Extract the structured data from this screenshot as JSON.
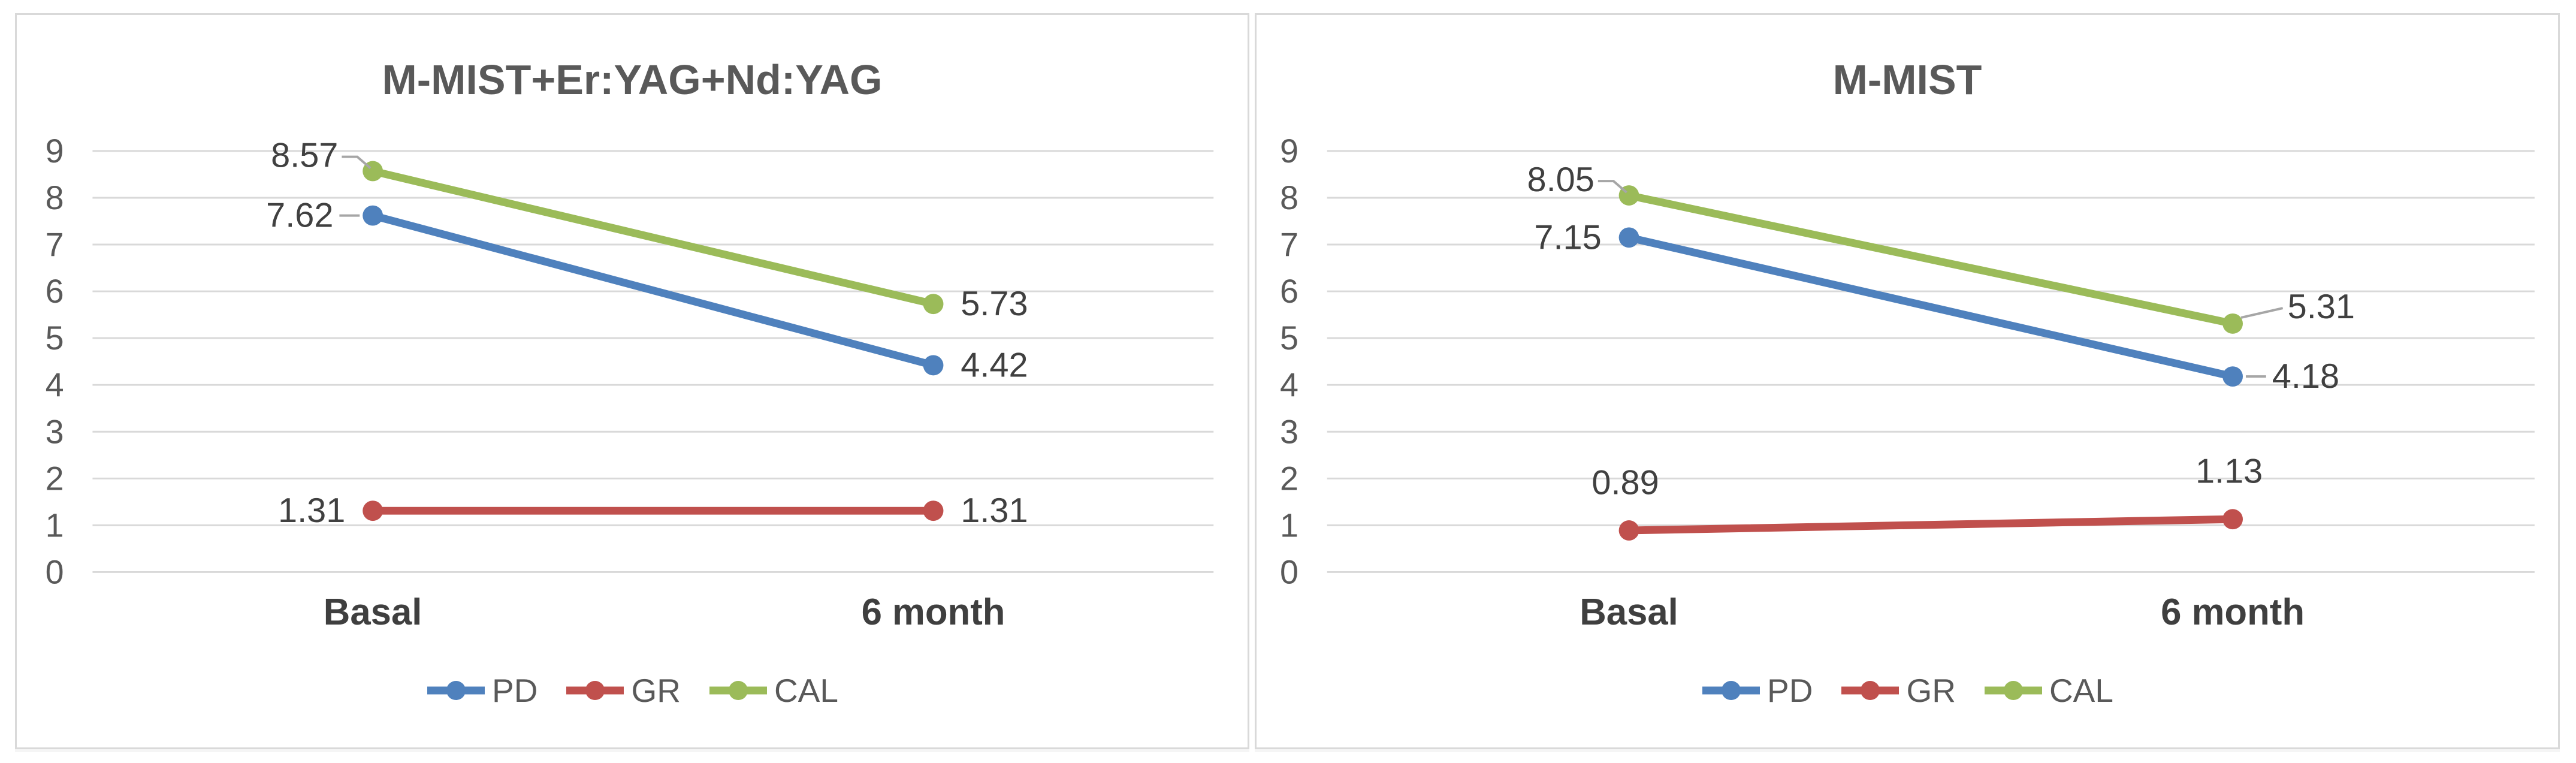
{
  "styles": {
    "gridline": "#D9D9D9",
    "panel_border": "#D9D9D9",
    "axis_text": "#595959",
    "label_text": "#404040",
    "leader": "#A6A6A6",
    "series_blue": "#4F81BD",
    "series_red": "#C0504D",
    "series_green": "#9BBB59"
  },
  "chart_data": [
    {
      "type": "line",
      "title": "M-MIST+Er:YAG+Nd:YAG",
      "categories": [
        "Basal",
        "6 month"
      ],
      "ylim": [
        0,
        9
      ],
      "yticks": [
        0,
        1,
        2,
        3,
        4,
        5,
        6,
        7,
        8,
        9
      ],
      "grid": true,
      "legend_position": "bottom",
      "series": [
        {
          "name": "PD",
          "color": "#4F81BD",
          "values": [
            7.62,
            4.42
          ],
          "labels": [
            {
              "text": "7.62",
              "pos": "left",
              "leader": "h"
            },
            {
              "text": "4.42",
              "pos": "right",
              "leader": "none"
            }
          ]
        },
        {
          "name": "GR",
          "color": "#C0504D",
          "values": [
            1.31,
            1.31
          ],
          "labels": [
            {
              "text": "1.31",
              "pos": "left",
              "leader": "none"
            },
            {
              "text": "1.31",
              "pos": "right",
              "leader": "none"
            }
          ]
        },
        {
          "name": "CAL",
          "color": "#9BBB59",
          "values": [
            8.57,
            5.73
          ],
          "labels": [
            {
              "text": "8.57",
              "pos": "left-elbow",
              "leader": "elbow"
            },
            {
              "text": "5.73",
              "pos": "right",
              "leader": "none"
            }
          ]
        }
      ]
    },
    {
      "type": "line",
      "title": "M-MIST",
      "categories": [
        "Basal",
        "6 month"
      ],
      "ylim": [
        0,
        9
      ],
      "yticks": [
        0,
        1,
        2,
        3,
        4,
        5,
        6,
        7,
        8,
        9
      ],
      "grid": true,
      "legend_position": "bottom",
      "series": [
        {
          "name": "PD",
          "color": "#4F81BD",
          "values": [
            7.15,
            4.18
          ],
          "labels": [
            {
              "text": "7.15",
              "pos": "left",
              "leader": "none"
            },
            {
              "text": "4.18",
              "pos": "right",
              "leader": "h"
            }
          ]
        },
        {
          "name": "GR",
          "color": "#C0504D",
          "values": [
            0.89,
            1.13
          ],
          "labels": [
            {
              "text": "0.89",
              "pos": "above",
              "leader": "none"
            },
            {
              "text": "1.13",
              "pos": "above",
              "leader": "none"
            }
          ]
        },
        {
          "name": "CAL",
          "color": "#9BBB59",
          "values": [
            8.05,
            5.31
          ],
          "labels": [
            {
              "text": "8.05",
              "pos": "left-elbow",
              "leader": "elbow"
            },
            {
              "text": "5.31",
              "pos": "right-up",
              "leader": "diag"
            }
          ]
        }
      ]
    }
  ]
}
